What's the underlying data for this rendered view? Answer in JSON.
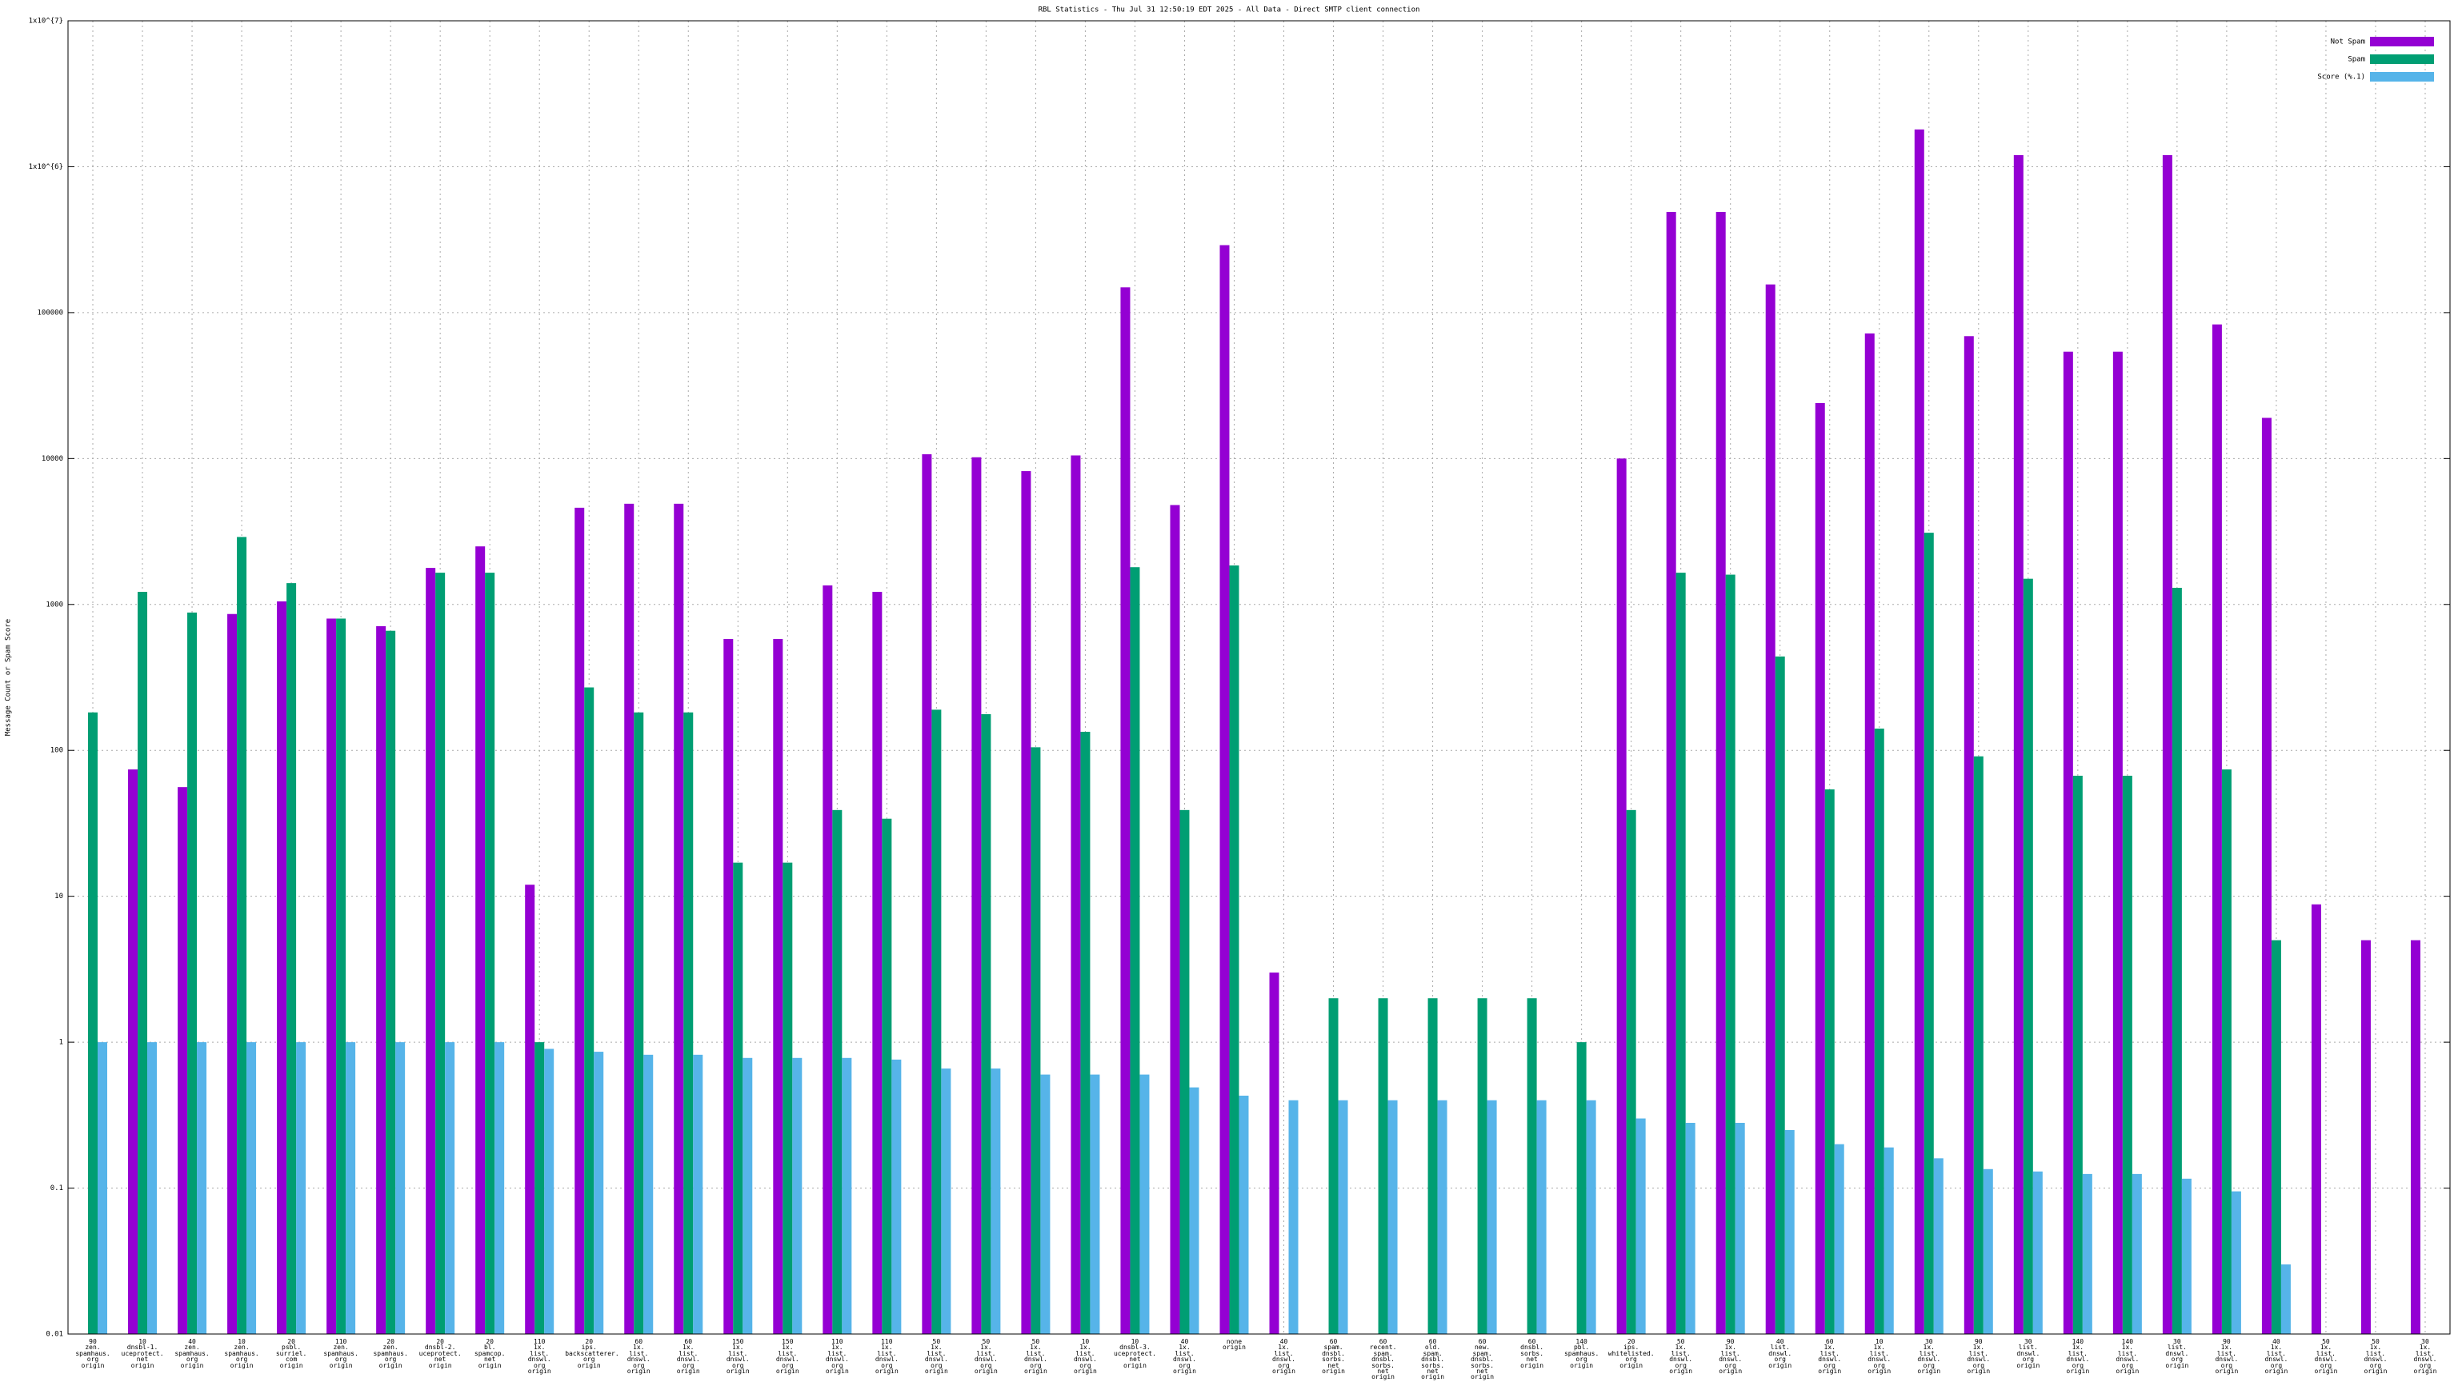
{
  "chart_data": {
    "type": "bar",
    "title": "RBL Statistics - Thu Jul 31 12:50:19 EDT 2025 - All Data - Direct SMTP client connection",
    "y_label": "Message Count or Spam Score",
    "log_y": true,
    "grid": true,
    "legend": "top-right",
    "ylim": [
      0.01,
      10000000
    ],
    "yticks": [
      0.01,
      0.1,
      1,
      10,
      100,
      1000,
      10000,
      100000,
      {
        "value": 1000000,
        "label": "1x10^{6}"
      },
      {
        "value": 10000000,
        "label": "1x10^{7}"
      }
    ],
    "categories": [
      "90\nzen.\nspamhaus.\norg\norigin",
      "10\ndnsbl-1.\nuceprotect.\nnet\norigin",
      "40\nzen.\nspamhaus.\norg\norigin",
      "10\nzen.\nspamhaus.\norg\norigin",
      "20\npsbl.\nsurriel.\ncom\norigin",
      "110\nzen.\nspamhaus.\norg\norigin",
      "20\nzen.\nspamhaus.\norg\norigin",
      "20\ndnsbl-2.\nuceprotect.\nnet\norigin",
      "20\nbl.\nspamcop.\nnet\norigin",
      "110\n1x.\nlist.\ndnswl.\norg\norigin",
      "20\nips.\nbackscatterer.\norg\norigin",
      "60\n1x.\nlist.\ndnswl.\norg\norigin",
      "60\n1x.\nlist.\ndnswl.\norg\norigin",
      "150\n1x.\nlist.\ndnswl.\norg\norigin",
      "150\n1x.\nlist.\ndnswl.\norg\norigin",
      "110\n1x.\nlist.\ndnswl.\norg\norigin",
      "110\n1x.\nlist.\ndnswl.\norg\norigin",
      "50\n1x.\nlist.\ndnswl.\norg\norigin",
      "50\n1x.\nlist.\ndnswl.\norg\norigin",
      "50\n1x.\nlist.\ndnswl.\norg\norigin",
      "10\n1x.\nlist.\ndnswl.\norg\norigin",
      "10\ndnsbl-3.\nuceprotect.\nnet\norigin",
      "40\n1x.\nlist.\ndnswl.\norg\norigin",
      "none\norigin",
      "40\n1x.\nlist.\ndnswl.\norg\norigin",
      "60\nspam.\ndnsbl.\nsorbs.\nnet\norigin",
      "60\nrecent.\nspam.\ndnsbl.\nsorbs.\nnet\norigin",
      "60\nold.\nspam.\ndnsbl.\nsorbs.\nnet\norigin",
      "60\nnew.\nspam.\ndnsbl.\nsorbs.\nnet\norigin",
      "60\ndnsbl.\nsorbs.\nnet\norigin",
      "140\npbl.\nspamhaus.\norg\norigin",
      "20\nips.\nwhitelisted.\norg\norigin",
      "50\n1x.\nlist.\ndnswl.\norg\norigin",
      "90\n1x.\nlist.\ndnswl.\norg\norigin",
      "40\nlist.\ndnswl.\norg\norigin",
      "60\n1x.\nlist.\ndnswl.\norg\norigin",
      "10\n1x.\nlist.\ndnswl.\norg\norigin",
      "30\n1x.\nlist.\ndnswl.\norg\norigin",
      "90\n1x.\nlist.\ndnswl.\norg\norigin",
      "30\nlist.\ndnswl.\norg\norigin",
      "140\n1x.\nlist.\ndnswl.\norg\norigin",
      "140\n1x.\nlist.\ndnswl.\norg\norigin",
      "30\nlist.\ndnswl.\norg\norigin",
      "90\n1x.\nlist.\ndnswl.\norg\norigin",
      "40\n1x.\nlist.\ndnswl.\norg\norigin",
      "50\n1x.\nlist.\ndnswl.\norg\norigin",
      "50\n1x.\nlist.\ndnswl.\norg\norigin",
      "30\n1x.\nlist.\ndnswl.\norg\norigin"
    ],
    "series": [
      {
        "name": "Not Spam",
        "color": "#9400d3",
        "values": [
          null,
          74,
          56,
          860,
          1050,
          800,
          710,
          1780,
          2500,
          12,
          4600,
          4900,
          4900,
          580,
          580,
          1350,
          1220,
          10700,
          10200,
          8200,
          10500,
          149000,
          4800,
          290000,
          3,
          null,
          null,
          null,
          null,
          null,
          null,
          10000,
          490000,
          490000,
          156000,
          24000,
          72000,
          1800000,
          69000,
          1200000,
          54000,
          54000,
          1200000,
          83000,
          19000,
          8.8,
          5,
          5
        ]
      },
      {
        "name": "Spam",
        "color": "#009e73",
        "values": [
          182,
          1220,
          880,
          2900,
          1400,
          800,
          660,
          1650,
          1650,
          1,
          270,
          182,
          182,
          17,
          17,
          39,
          34,
          190,
          177,
          105,
          134,
          1800,
          39,
          1850,
          null,
          2,
          2,
          2,
          2,
          2,
          1,
          39,
          1650,
          1600,
          440,
          54,
          141,
          3100,
          91,
          1500,
          67,
          67,
          1300,
          74,
          5,
          null,
          null,
          null
        ]
      },
      {
        "name": "Score (%.1)",
        "color": "#56b4e9",
        "values": [
          1,
          1,
          1,
          1,
          1,
          1,
          1,
          1,
          1,
          0.9,
          0.86,
          0.82,
          0.82,
          0.78,
          0.78,
          0.78,
          0.76,
          0.66,
          0.66,
          0.6,
          0.6,
          0.6,
          0.49,
          0.43,
          0.4,
          0.4,
          0.4,
          0.4,
          0.4,
          0.4,
          0.4,
          0.3,
          0.28,
          0.28,
          0.25,
          0.2,
          0.19,
          0.16,
          0.135,
          0.13,
          0.125,
          0.125,
          0.116,
          0.095,
          0.03,
          null,
          null,
          null
        ]
      }
    ]
  }
}
